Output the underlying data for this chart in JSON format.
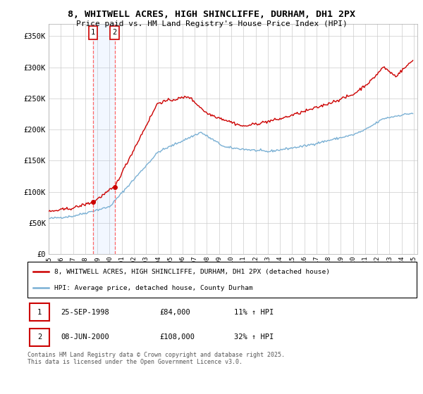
{
  "title": "8, WHITWELL ACRES, HIGH SHINCLIFFE, DURHAM, DH1 2PX",
  "subtitle": "Price paid vs. HM Land Registry's House Price Index (HPI)",
  "ylabel_ticks": [
    "£0",
    "£50K",
    "£100K",
    "£150K",
    "£200K",
    "£250K",
    "£300K",
    "£350K"
  ],
  "ytick_vals": [
    0,
    50000,
    100000,
    150000,
    200000,
    250000,
    300000,
    350000
  ],
  "ylim": [
    0,
    370000
  ],
  "sale1_date": "25-SEP-1998",
  "sale1_price": 84000,
  "sale1_hpi": "11% ↑ HPI",
  "sale2_date": "08-JUN-2000",
  "sale2_price": 108000,
  "sale2_hpi": "32% ↑ HPI",
  "legend1": "8, WHITWELL ACRES, HIGH SHINCLIFFE, DURHAM, DH1 2PX (detached house)",
  "legend2": "HPI: Average price, detached house, County Durham",
  "footnote": "Contains HM Land Registry data © Crown copyright and database right 2025.\nThis data is licensed under the Open Government Licence v3.0.",
  "line_color_red": "#cc0000",
  "line_color_blue": "#7ab0d4",
  "background_color": "#ffffff",
  "grid_color": "#cccccc",
  "sale_marker_color": "#cc0000",
  "annotation_bg": "#ddeeff",
  "sale1_x": 1998.667,
  "sale2_x": 2000.417
}
